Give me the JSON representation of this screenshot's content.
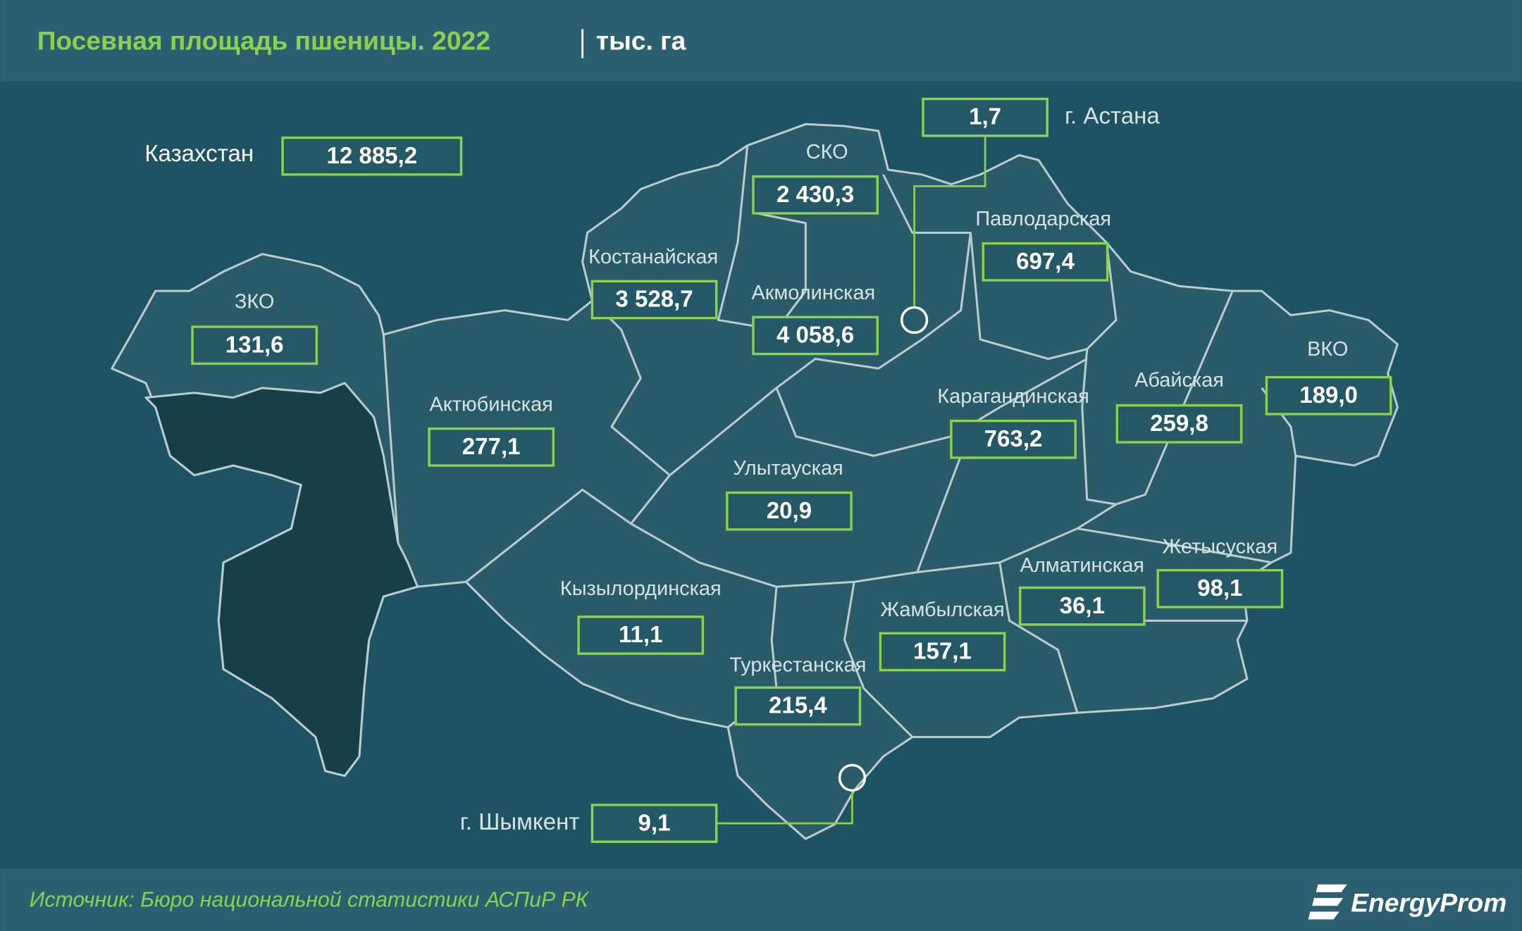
{
  "header": {
    "title": "Посевная площадь пшеницы. 2022",
    "unit": "тыс. га"
  },
  "country": {
    "label": "Казахстан",
    "value": "12 885,2"
  },
  "regions": [
    {
      "name": "СКО",
      "value": "2 430,3"
    },
    {
      "name": "Павлодарская",
      "value": "697,4"
    },
    {
      "name": "Костанайская",
      "value": "3 528,7"
    },
    {
      "name": "Акмолинская",
      "value": "4 058,6"
    },
    {
      "name": "ЗКО",
      "value": "131,6"
    },
    {
      "name": "Актюбинская",
      "value": "277,1"
    },
    {
      "name": "Карагандинская",
      "value": "763,2"
    },
    {
      "name": "Абайская",
      "value": "259,8"
    },
    {
      "name": "ВКО",
      "value": "189,0"
    },
    {
      "name": "Улытауская",
      "value": "20,9"
    },
    {
      "name": "Кызылординская",
      "value": "11,1"
    },
    {
      "name": "Жамбылская",
      "value": "157,1"
    },
    {
      "name": "Алматинская",
      "value": "36,1"
    },
    {
      "name": "Жетысуская",
      "value": "98,1"
    },
    {
      "name": "Туркестанская",
      "value": "215,4"
    }
  ],
  "cities": [
    {
      "name": "г. Астана",
      "value": "1,7"
    },
    {
      "name": "г. Шымкент",
      "value": "9,1"
    }
  ],
  "footer": {
    "source": "Источник: Бюро национальной статистики АСПиР РК",
    "logo": "EnergyProm"
  }
}
